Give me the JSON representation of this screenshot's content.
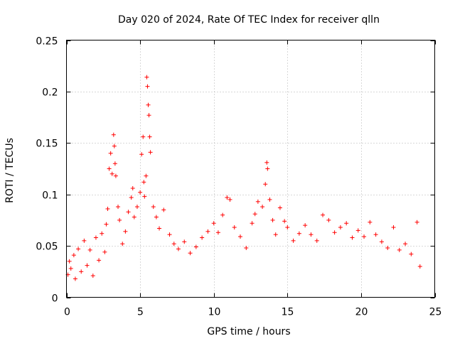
{
  "chart_data": {
    "type": "scatter",
    "title": "Day 020 of 2024, Rate Of TEC Index for receiver qlln",
    "xlabel": "GPS time / hours",
    "ylabel": "ROTI / TECUs",
    "xlim": [
      0,
      25
    ],
    "ylim": [
      0,
      0.25
    ],
    "x_ticks": [
      0,
      5,
      10,
      15,
      20,
      25
    ],
    "x_tick_labels": [
      "0",
      "5",
      "10",
      "15",
      "20",
      "25"
    ],
    "y_ticks": [
      0,
      0.05,
      0.1,
      0.15,
      0.2,
      0.25
    ],
    "y_tick_labels": [
      "0",
      "0.05",
      "0.1",
      "0.15",
      "0.2",
      "0.25"
    ],
    "grid": true,
    "marker": "+",
    "color": "#ff0000",
    "series": [
      {
        "name": "ROTI",
        "points": [
          [
            0.1,
            0.022
          ],
          [
            0.2,
            0.035
          ],
          [
            0.3,
            0.028
          ],
          [
            0.5,
            0.041
          ],
          [
            0.6,
            0.018
          ],
          [
            0.8,
            0.047
          ],
          [
            1.0,
            0.025
          ],
          [
            1.2,
            0.055
          ],
          [
            1.4,
            0.031
          ],
          [
            1.6,
            0.046
          ],
          [
            1.8,
            0.021
          ],
          [
            2.0,
            0.058
          ],
          [
            2.2,
            0.036
          ],
          [
            2.4,
            0.062
          ],
          [
            2.6,
            0.044
          ],
          [
            2.7,
            0.071
          ],
          [
            2.8,
            0.086
          ],
          [
            2.9,
            0.125
          ],
          [
            3.0,
            0.14
          ],
          [
            3.1,
            0.12
          ],
          [
            3.2,
            0.158
          ],
          [
            3.25,
            0.147
          ],
          [
            3.3,
            0.13
          ],
          [
            3.35,
            0.118
          ],
          [
            3.5,
            0.088
          ],
          [
            3.6,
            0.075
          ],
          [
            3.8,
            0.052
          ],
          [
            4.0,
            0.064
          ],
          [
            4.2,
            0.083
          ],
          [
            4.4,
            0.097
          ],
          [
            4.5,
            0.106
          ],
          [
            4.6,
            0.078
          ],
          [
            4.8,
            0.088
          ],
          [
            5.0,
            0.102
          ],
          [
            5.1,
            0.139
          ],
          [
            5.2,
            0.156
          ],
          [
            5.25,
            0.112
          ],
          [
            5.3,
            0.098
          ],
          [
            5.4,
            0.118
          ],
          [
            5.45,
            0.214
          ],
          [
            5.5,
            0.205
          ],
          [
            5.55,
            0.187
          ],
          [
            5.6,
            0.177
          ],
          [
            5.65,
            0.156
          ],
          [
            5.7,
            0.141
          ],
          [
            5.9,
            0.088
          ],
          [
            6.1,
            0.078
          ],
          [
            6.3,
            0.067
          ],
          [
            6.6,
            0.085
          ],
          [
            7.0,
            0.061
          ],
          [
            7.3,
            0.052
          ],
          [
            7.6,
            0.047
          ],
          [
            8.0,
            0.054
          ],
          [
            8.4,
            0.043
          ],
          [
            8.8,
            0.049
          ],
          [
            9.2,
            0.058
          ],
          [
            9.6,
            0.064
          ],
          [
            10.0,
            0.072
          ],
          [
            10.3,
            0.063
          ],
          [
            10.6,
            0.08
          ],
          [
            10.9,
            0.097
          ],
          [
            11.1,
            0.095
          ],
          [
            11.4,
            0.068
          ],
          [
            11.8,
            0.059
          ],
          [
            12.2,
            0.048
          ],
          [
            12.6,
            0.072
          ],
          [
            12.8,
            0.081
          ],
          [
            13.0,
            0.093
          ],
          [
            13.3,
            0.088
          ],
          [
            13.5,
            0.11
          ],
          [
            13.6,
            0.131
          ],
          [
            13.65,
            0.125
          ],
          [
            13.8,
            0.095
          ],
          [
            14.0,
            0.075
          ],
          [
            14.2,
            0.061
          ],
          [
            14.5,
            0.087
          ],
          [
            14.8,
            0.074
          ],
          [
            15.0,
            0.068
          ],
          [
            15.4,
            0.055
          ],
          [
            15.8,
            0.062
          ],
          [
            16.2,
            0.07
          ],
          [
            16.6,
            0.061
          ],
          [
            17.0,
            0.055
          ],
          [
            17.4,
            0.08
          ],
          [
            17.8,
            0.075
          ],
          [
            18.2,
            0.063
          ],
          [
            18.6,
            0.068
          ],
          [
            19.0,
            0.072
          ],
          [
            19.4,
            0.058
          ],
          [
            19.8,
            0.065
          ],
          [
            20.2,
            0.059
          ],
          [
            20.6,
            0.073
          ],
          [
            21.0,
            0.061
          ],
          [
            21.4,
            0.054
          ],
          [
            21.8,
            0.048
          ],
          [
            22.2,
            0.068
          ],
          [
            22.6,
            0.046
          ],
          [
            23.0,
            0.052
          ],
          [
            23.4,
            0.042
          ],
          [
            23.8,
            0.073
          ],
          [
            24.0,
            0.03
          ]
        ]
      }
    ]
  }
}
